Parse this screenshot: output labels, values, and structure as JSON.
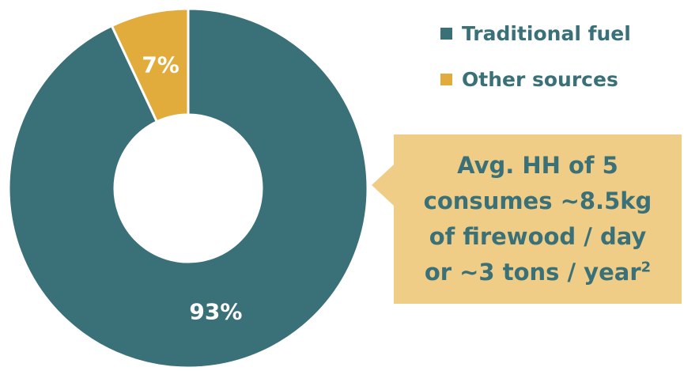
{
  "chart_data": {
    "type": "pie",
    "style": "donut",
    "categories": [
      "Traditional fuel",
      "Other sources"
    ],
    "values": [
      93,
      7
    ],
    "data_labels": [
      "93%",
      "7%"
    ],
    "colors": [
      "#3a7077",
      "#e2ac3c"
    ],
    "legend_placement": "top-right"
  },
  "legend": {
    "items": [
      {
        "label": "Traditional fuel",
        "color": "#3a7077"
      },
      {
        "label": "Other sources",
        "color": "#e2ac3c"
      }
    ]
  },
  "callout": {
    "lines": [
      "Avg. HH of 5",
      "consumes ~8.5kg",
      "of firewood / day",
      "or ~3 tons / year"
    ],
    "superscript": "2",
    "background": "#f0cd86",
    "text_color": "#3a7077"
  }
}
